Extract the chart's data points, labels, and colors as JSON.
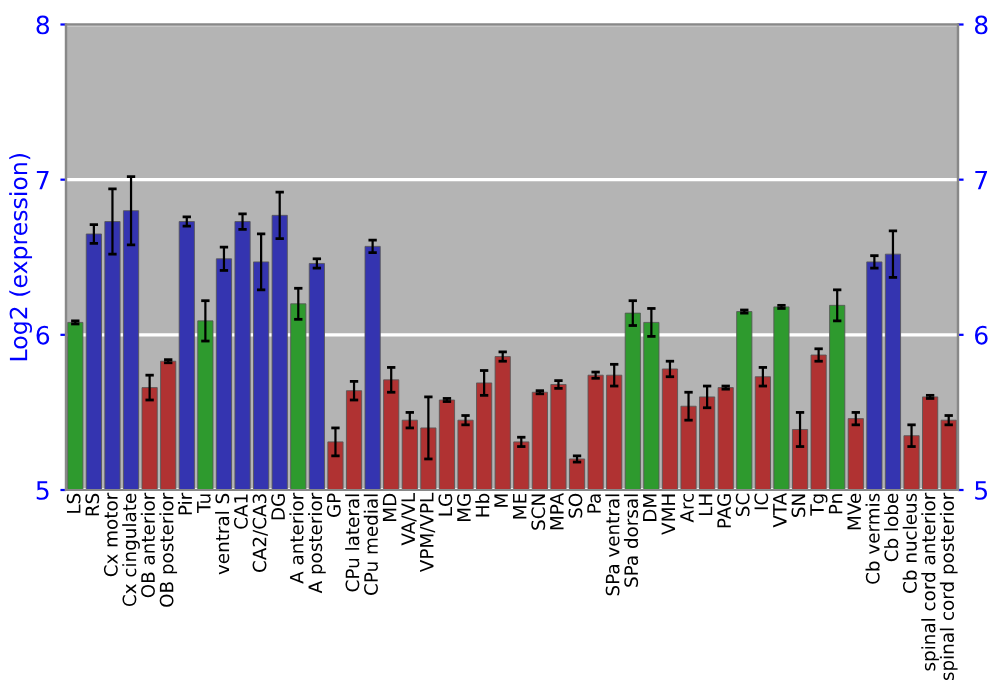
{
  "chart_data": {
    "type": "bar",
    "ylabel": "Log2 (expression)",
    "categories": [
      "LS",
      "RS",
      "Cx motor",
      "Cx cingulate",
      "OB anterior",
      "OB posterior",
      "Pir",
      "Tu",
      "ventral S",
      "CA1",
      "CA2/CA3",
      "DG",
      "A anterior",
      "A posterior",
      "GP",
      "CPu lateral",
      "CPu medial",
      "MD",
      "VA/VL",
      "VPM/VPL",
      "LG",
      "MG",
      "Hb",
      "M",
      "ME",
      "SCN",
      "MPA",
      "SO",
      "Pa",
      "SPa ventral",
      "SPa dorsal",
      "DM",
      "VMH",
      "Arc",
      "LH",
      "PAG",
      "SC",
      "IC",
      "VTA",
      "SN",
      "Tg",
      "Pn",
      "MVe",
      "Cb vermis",
      "Cb lobe",
      "Cb nucleus",
      "spinal cord anterior",
      "spinal cord posterior"
    ],
    "values": [
      6.08,
      6.65,
      6.73,
      6.8,
      5.66,
      5.83,
      6.73,
      6.09,
      6.49,
      6.73,
      6.47,
      6.77,
      6.2,
      6.46,
      5.31,
      5.64,
      6.57,
      5.71,
      5.45,
      5.4,
      5.58,
      5.45,
      5.69,
      5.86,
      5.31,
      5.63,
      5.68,
      5.2,
      5.74,
      5.74,
      6.14,
      6.08,
      5.78,
      5.54,
      5.6,
      5.66,
      6.15,
      5.73,
      6.18,
      5.39,
      5.87,
      6.19,
      5.46,
      6.47,
      6.52,
      5.35,
      5.6,
      5.45
    ],
    "errors": [
      0.01,
      0.06,
      0.21,
      0.22,
      0.08,
      0.01,
      0.03,
      0.13,
      0.075,
      0.05,
      0.18,
      0.15,
      0.1,
      0.03,
      0.09,
      0.06,
      0.04,
      0.08,
      0.05,
      0.2,
      0.01,
      0.03,
      0.08,
      0.03,
      0.03,
      0.01,
      0.025,
      0.02,
      0.02,
      0.07,
      0.08,
      0.09,
      0.05,
      0.09,
      0.07,
      0.01,
      0.01,
      0.06,
      0.01,
      0.11,
      0.04,
      0.1,
      0.04,
      0.04,
      0.15,
      0.07,
      0.01,
      0.03
    ],
    "colors": [
      "#2e9a2e",
      "#3434b0",
      "#3434b0",
      "#3434b0",
      "#b03232",
      "#b03232",
      "#3434b0",
      "#2e9a2e",
      "#3434b0",
      "#3434b0",
      "#3434b0",
      "#3434b0",
      "#2e9a2e",
      "#3434b0",
      "#b03232",
      "#b03232",
      "#3434b0",
      "#b03232",
      "#b03232",
      "#b03232",
      "#b03232",
      "#b03232",
      "#b03232",
      "#b03232",
      "#b03232",
      "#b03232",
      "#b03232",
      "#b03232",
      "#b03232",
      "#b03232",
      "#2e9a2e",
      "#2e9a2e",
      "#b03232",
      "#b03232",
      "#b03232",
      "#b03232",
      "#2e9a2e",
      "#b03232",
      "#2e9a2e",
      "#b03232",
      "#b03232",
      "#2e9a2e",
      "#b03232",
      "#3434b0",
      "#3434b0",
      "#b03232",
      "#b03232",
      "#b03232"
    ],
    "ylim": [
      5,
      8
    ],
    "yticks": [
      5,
      6,
      7,
      8
    ],
    "y2lim": [
      5,
      8
    ],
    "y2ticks": [
      5,
      6,
      7,
      8
    ],
    "grid": "y",
    "legend": false
  }
}
